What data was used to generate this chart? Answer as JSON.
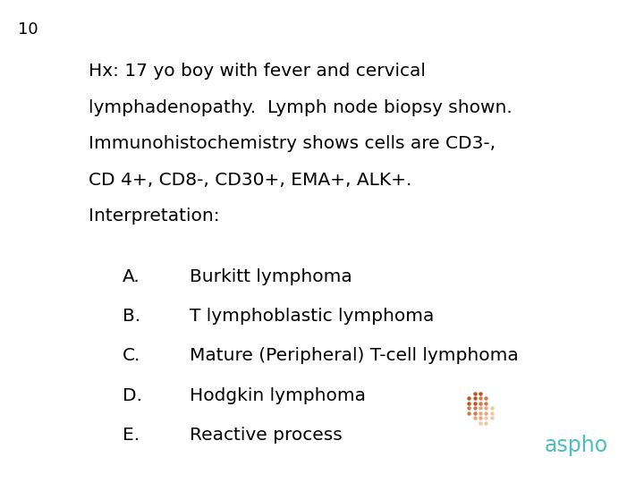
{
  "slide_number": "10",
  "background_color": "#ffffff",
  "text_color": "#000000",
  "slide_number_fontsize": 13,
  "paragraph_fontsize": 14.5,
  "options_fontsize": 14.5,
  "paragraph_lines": [
    "Hx: 17 yo boy with fever and cervical",
    "lymphadenopathy.  Lymph node biopsy shown.",
    "Immunohistochemistry shows cells are CD3-,",
    "CD 4+, CD8-, CD30+, EMA+, ALK+.",
    "Interpretation:"
  ],
  "options": [
    [
      "A.",
      "Burkitt lymphoma"
    ],
    [
      "B.",
      "T lymphoblastic lymphoma"
    ],
    [
      "C.",
      "Mature (Peripheral) T-cell lymphoma"
    ],
    [
      "D.",
      "Hodgkin lymphoma"
    ],
    [
      "E.",
      "Reactive process"
    ]
  ],
  "logo_text": "aspho",
  "logo_text_color": "#4bbfbf",
  "logo_text_fontsize": 17,
  "dot_colors": {
    "dark": "#c0521a",
    "mid": "#d4784a",
    "light": "#e8a87a",
    "lighter": "#f0c8a0"
  }
}
